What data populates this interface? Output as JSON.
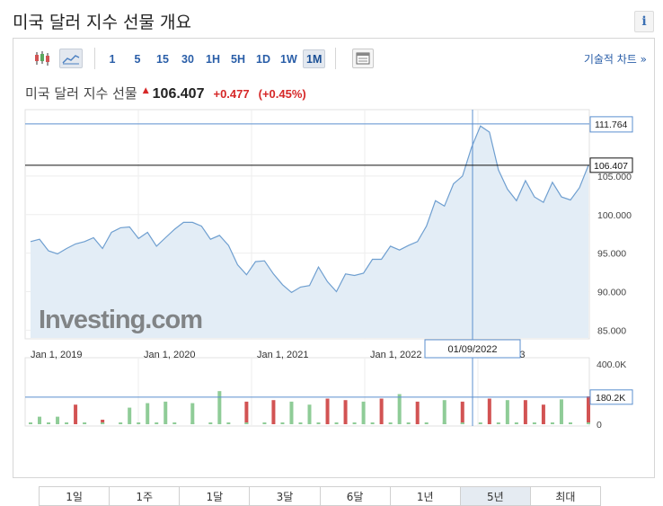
{
  "page": {
    "title": "미국 달러 지수 선물 개요",
    "info_icon": "i"
  },
  "toolbar": {
    "icons": [
      "candlestick-icon",
      "area-chart-icon",
      "chart-settings-icon"
    ],
    "timeframes": [
      "1",
      "5",
      "15",
      "30",
      "1H",
      "5H",
      "1D",
      "1W",
      "1M"
    ],
    "active_timeframe": "1M",
    "advanced_chart_label": "기술적 차트 »"
  },
  "quote": {
    "name": "미국 달러 지수 선물",
    "price": "106.407",
    "change": "+0.477",
    "change_pct": "(+0.45%)",
    "direction_color": "#d62828"
  },
  "chart_data": {
    "type": "area",
    "price_series": {
      "x_start": "2018-11",
      "x_end": "2023-08",
      "values": [
        96.5,
        96.8,
        95.3,
        94.9,
        95.6,
        96.2,
        96.5,
        97.0,
        95.6,
        97.7,
        98.3,
        98.4,
        96.9,
        97.7,
        95.9,
        97.0,
        98.1,
        99.0,
        99.0,
        98.5,
        96.8,
        97.3,
        96.0,
        93.5,
        92.2,
        93.9,
        94.0,
        92.3,
        90.9,
        89.9,
        90.6,
        90.8,
        93.2,
        91.3,
        90.0,
        92.3,
        92.1,
        92.4,
        94.2,
        94.2,
        95.9,
        95.4,
        96.0,
        96.5,
        98.5,
        101.8,
        101.1,
        104.0,
        105.0,
        108.7,
        111.5,
        110.7,
        105.8,
        103.3,
        101.8,
        104.4,
        102.3,
        101.6,
        104.2,
        102.3,
        101.9,
        103.5,
        106.4
      ]
    },
    "price_axis": {
      "ticks": [
        "85.000",
        "90.000",
        "95.000",
        "100.000",
        "105.000"
      ],
      "tick_values": [
        85,
        90,
        95,
        100,
        105
      ],
      "range": [
        84,
        113.5
      ]
    },
    "x_ticks": [
      "Jan 1, 2019",
      "Jan 1, 2020",
      "Jan 1, 2021",
      "Jan 1, 2022",
      "2023"
    ],
    "crosshair": {
      "date_label": "01/09/2022",
      "price_label": "111.764",
      "price": 111.764,
      "volume_label": "180.2K",
      "volume": 180200
    },
    "last_price_label": "106.407",
    "last_price": 106.407,
    "volume_axis": {
      "ticks": [
        "400.0K",
        "0"
      ],
      "tick_values": [
        400000,
        0
      ],
      "max": 400000
    },
    "volume_series": {
      "months": [
        1,
        3,
        5,
        8,
        11,
        13,
        15,
        18,
        21,
        24,
        27,
        29,
        31,
        33,
        35,
        37,
        39,
        41,
        43,
        46,
        48,
        51,
        53,
        55,
        57,
        59,
        62
      ],
      "values": [
        50000,
        50000,
        130000,
        30000,
        110000,
        140000,
        150000,
        140000,
        220000,
        150000,
        160000,
        150000,
        130000,
        170000,
        160000,
        150000,
        170000,
        200000,
        150000,
        160000,
        150000,
        170000,
        160000,
        160000,
        130000,
        165000,
        185000
      ],
      "directions": [
        "u",
        "u",
        "d",
        "d",
        "u",
        "u",
        "u",
        "u",
        "u",
        "d",
        "d",
        "u",
        "u",
        "d",
        "d",
        "u",
        "d",
        "u",
        "d",
        "u",
        "d",
        "d",
        "u",
        "d",
        "d",
        "u",
        "d"
      ]
    },
    "watermark": "Investing.com",
    "accent": "#2a5ea8",
    "line_color": "#6f9fd0",
    "area_color": "#e3edf6",
    "up_color": "#8fcc97",
    "down_color": "#d25353"
  },
  "ranges": {
    "items": [
      "1일",
      "1주",
      "1달",
      "3달",
      "6달",
      "1년",
      "5년",
      "최대"
    ],
    "active": "5년"
  }
}
